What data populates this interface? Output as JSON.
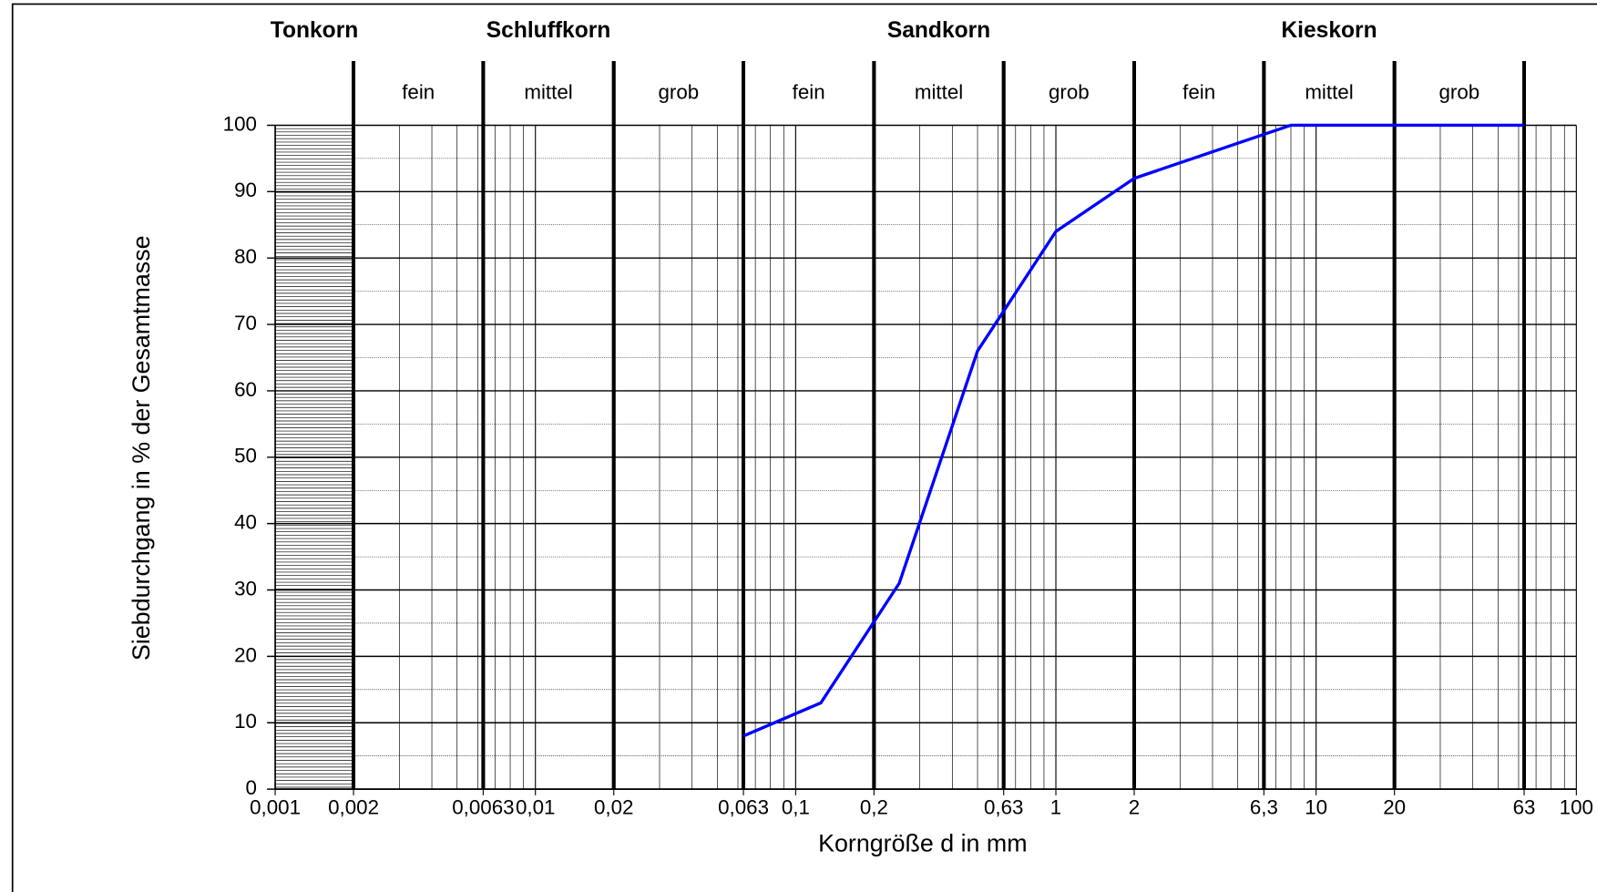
{
  "chart_data": {
    "type": "line",
    "x_label": "Korngröße d in mm",
    "y_label": "Siebdurchgang in % der Gesamtmasse",
    "xscale": "log",
    "xlim": [
      0.001,
      100
    ],
    "ylim": [
      0,
      100
    ],
    "xticks": [
      {
        "value": 0.001,
        "label": "0,001"
      },
      {
        "value": 0.002,
        "label": "0,002"
      },
      {
        "value": 0.0063,
        "label": "0,0063"
      },
      {
        "value": 0.01,
        "label": "0,01"
      },
      {
        "value": 0.02,
        "label": "0,02"
      },
      {
        "value": 0.063,
        "label": "0,063"
      },
      {
        "value": 0.1,
        "label": "0,1"
      },
      {
        "value": 0.2,
        "label": "0,2"
      },
      {
        "value": 0.63,
        "label": "0,63"
      },
      1,
      2,
      {
        "value": 6.3,
        "label": "6,3"
      },
      10,
      20,
      63,
      100
    ],
    "yticks": [
      0,
      10,
      20,
      30,
      40,
      50,
      60,
      70,
      80,
      90,
      100
    ],
    "grid": true,
    "zones": [
      {
        "name": "Tonkorn",
        "xlim": [
          0.001,
          0.002
        ]
      },
      {
        "name": "Schluffkorn",
        "xlim": [
          0.002,
          0.063
        ],
        "subzones": [
          {
            "name": "fein",
            "xlim": [
              0.002,
              0.0063
            ]
          },
          {
            "name": "mittel",
            "xlim": [
              0.0063,
              0.02
            ]
          },
          {
            "name": "grob",
            "xlim": [
              0.02,
              0.063
            ]
          }
        ]
      },
      {
        "name": "Sandkorn",
        "xlim": [
          0.063,
          2
        ],
        "subzones": [
          {
            "name": "fein",
            "xlim": [
              0.063,
              0.2
            ]
          },
          {
            "name": "mittel",
            "xlim": [
              0.2,
              0.63
            ]
          },
          {
            "name": "grob",
            "xlim": [
              0.63,
              2
            ]
          }
        ]
      },
      {
        "name": "Kieskorn",
        "xlim": [
          2,
          63
        ],
        "subzones": [
          {
            "name": "fein",
            "xlim": [
              2,
              6.3
            ]
          },
          {
            "name": "mittel",
            "xlim": [
              6.3,
              20
            ]
          },
          {
            "name": "grob",
            "xlim": [
              20,
              63
            ]
          }
        ]
      }
    ],
    "x": [
      0.063,
      0.125,
      0.25,
      0.5,
      1,
      2,
      8,
      63
    ],
    "series": [
      {
        "color": "#0000ff",
        "values": [
          8,
          13,
          31,
          66,
          84,
          92,
          100,
          100
        ]
      }
    ]
  }
}
